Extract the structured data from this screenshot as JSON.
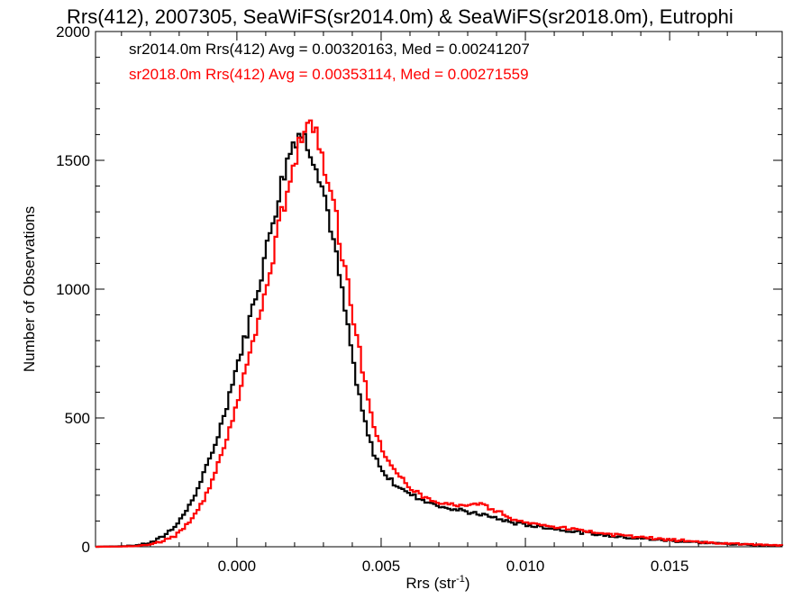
{
  "chart_data": {
    "type": "line",
    "title": "Rrs(412), 2007305, SeaWiFS(sr2014.0m) & SeaWiFS(sr2018.0m), Eutrophi",
    "xlabel": "Rrs (str",
    "xlabel_sup": "-1",
    "xlabel_end": ")",
    "ylabel": "Number of Observations",
    "xlim": [
      -0.0049,
      0.0189
    ],
    "ylim": [
      0,
      2000
    ],
    "x_ticks": [
      0.0,
      0.005,
      0.01,
      0.015
    ],
    "x_tick_labels": [
      "0.000",
      "0.005",
      "0.010",
      "0.015"
    ],
    "y_ticks": [
      0,
      500,
      1000,
      1500,
      2000
    ],
    "y_tick_labels": [
      "0",
      "500",
      "1000",
      "1500",
      "2000"
    ],
    "grid": false,
    "legend_position": "top-left",
    "stepped": true,
    "series": [
      {
        "name": "sr2014.0m",
        "color": "#000000",
        "legend_text": "sr2014.0m Rrs(412) Avg = 0.00320163, Med = 0.00241207",
        "points": [
          [
            -0.0049,
            0
          ],
          [
            -0.004,
            2
          ],
          [
            -0.0035,
            5
          ],
          [
            -0.003,
            15
          ],
          [
            -0.0028,
            25
          ],
          [
            -0.0025,
            45
          ],
          [
            -0.0022,
            75
          ],
          [
            -0.002,
            100
          ],
          [
            -0.0018,
            130
          ],
          [
            -0.0016,
            170
          ],
          [
            -0.0014,
            215
          ],
          [
            -0.0012,
            265
          ],
          [
            -0.001,
            320
          ],
          [
            -0.0008,
            385
          ],
          [
            -0.0006,
            450
          ],
          [
            -0.0004,
            530
          ],
          [
            -0.0002,
            620
          ],
          [
            0.0,
            700
          ],
          [
            0.0002,
            780
          ],
          [
            0.0004,
            860
          ],
          [
            0.0006,
            950
          ],
          [
            0.0008,
            1040
          ],
          [
            0.001,
            1140
          ],
          [
            0.0012,
            1250
          ],
          [
            0.0014,
            1340
          ],
          [
            0.0016,
            1440
          ],
          [
            0.0018,
            1520
          ],
          [
            0.002,
            1590
          ],
          [
            0.0022,
            1610
          ],
          [
            0.0024,
            1570
          ],
          [
            0.0026,
            1540
          ],
          [
            0.0028,
            1480
          ],
          [
            0.003,
            1380
          ],
          [
            0.0032,
            1280
          ],
          [
            0.0034,
            1150
          ],
          [
            0.0036,
            1020
          ],
          [
            0.0038,
            880
          ],
          [
            0.004,
            740
          ],
          [
            0.0042,
            600
          ],
          [
            0.0044,
            500
          ],
          [
            0.0046,
            410
          ],
          [
            0.0048,
            350
          ],
          [
            0.005,
            300
          ],
          [
            0.0055,
            240
          ],
          [
            0.006,
            205
          ],
          [
            0.0065,
            180
          ],
          [
            0.007,
            160
          ],
          [
            0.0075,
            145
          ],
          [
            0.008,
            135
          ],
          [
            0.0085,
            125
          ],
          [
            0.009,
            110
          ],
          [
            0.0095,
            95
          ],
          [
            0.01,
            85
          ],
          [
            0.011,
            70
          ],
          [
            0.012,
            55
          ],
          [
            0.013,
            42
          ],
          [
            0.014,
            32
          ],
          [
            0.015,
            24
          ],
          [
            0.016,
            17
          ],
          [
            0.017,
            11
          ],
          [
            0.018,
            7
          ],
          [
            0.0189,
            4
          ]
        ]
      },
      {
        "name": "sr2018.0m",
        "color": "#ff0000",
        "legend_text": "sr2018.0m Rrs(412) Avg = 0.00353114, Med = 0.00271559",
        "points": [
          [
            -0.0049,
            0
          ],
          [
            -0.004,
            1
          ],
          [
            -0.0035,
            3
          ],
          [
            -0.003,
            8
          ],
          [
            -0.0028,
            14
          ],
          [
            -0.0025,
            25
          ],
          [
            -0.0022,
            40
          ],
          [
            -0.002,
            55
          ],
          [
            -0.0018,
            75
          ],
          [
            -0.0016,
            100
          ],
          [
            -0.0014,
            135
          ],
          [
            -0.0012,
            175
          ],
          [
            -0.001,
            220
          ],
          [
            -0.0008,
            270
          ],
          [
            -0.0006,
            330
          ],
          [
            -0.0004,
            400
          ],
          [
            -0.0002,
            480
          ],
          [
            0.0,
            560
          ],
          [
            0.0002,
            640
          ],
          [
            0.0004,
            720
          ],
          [
            0.0006,
            810
          ],
          [
            0.0008,
            900
          ],
          [
            0.001,
            990
          ],
          [
            0.0012,
            1090
          ],
          [
            0.0014,
            1200
          ],
          [
            0.0016,
            1310
          ],
          [
            0.0018,
            1410
          ],
          [
            0.002,
            1510
          ],
          [
            0.0022,
            1600
          ],
          [
            0.0024,
            1660
          ],
          [
            0.0026,
            1650
          ],
          [
            0.0028,
            1600
          ],
          [
            0.003,
            1510
          ],
          [
            0.0032,
            1420
          ],
          [
            0.0034,
            1300
          ],
          [
            0.0036,
            1180
          ],
          [
            0.0038,
            1040
          ],
          [
            0.004,
            920
          ],
          [
            0.0042,
            790
          ],
          [
            0.0044,
            660
          ],
          [
            0.0046,
            550
          ],
          [
            0.0048,
            450
          ],
          [
            0.005,
            380
          ],
          [
            0.0055,
            290
          ],
          [
            0.006,
            230
          ],
          [
            0.0065,
            190
          ],
          [
            0.007,
            170
          ],
          [
            0.0075,
            160
          ],
          [
            0.008,
            160
          ],
          [
            0.0085,
            165
          ],
          [
            0.009,
            140
          ],
          [
            0.0095,
            110
          ],
          [
            0.01,
            95
          ],
          [
            0.011,
            78
          ],
          [
            0.012,
            63
          ],
          [
            0.013,
            48
          ],
          [
            0.014,
            36
          ],
          [
            0.015,
            27
          ],
          [
            0.016,
            19
          ],
          [
            0.017,
            13
          ],
          [
            0.018,
            8
          ],
          [
            0.0189,
            5
          ]
        ]
      }
    ]
  }
}
